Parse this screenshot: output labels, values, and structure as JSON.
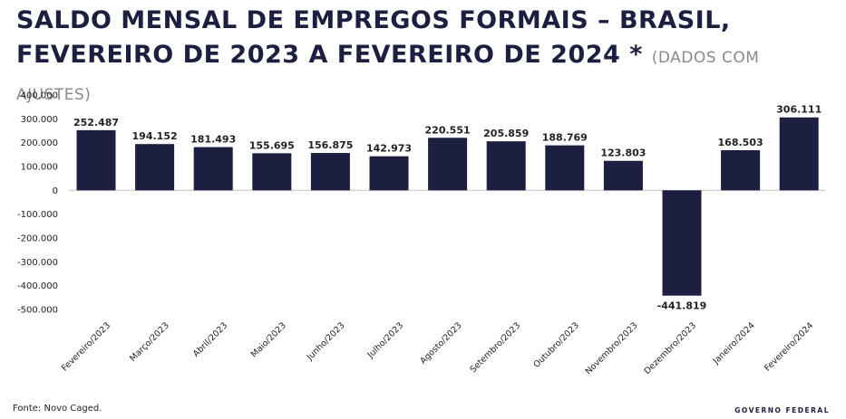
{
  "title": {
    "main": "SALDO MENSAL DE EMPREGOS FORMAIS – BRASIL, FEVEREIRO DE 2023 A FEVEREIRO DE 2024 *",
    "note": "(DADOS COM AJUSTES)"
  },
  "footer": {
    "source": "Fonte: Novo Caged.",
    "brand": "GOVERNO FEDERAL"
  },
  "colors": {
    "bar": "#1c1f3f",
    "title": "#1c1f3f",
    "axis_text": "#222222"
  },
  "chart_data": {
    "type": "bar",
    "title": "SALDO MENSAL DE EMPREGOS FORMAIS – BRASIL, FEVEREIRO DE 2023 A FEVEREIRO DE 2024 *",
    "xlabel": "",
    "ylabel": "",
    "ylim": [
      -500000,
      400000
    ],
    "yticks": [
      400000,
      300000,
      200000,
      100000,
      0,
      -100000,
      -200000,
      -300000,
      -400000,
      -500000
    ],
    "ytick_labels": [
      "400.000",
      "300.000",
      "200.000",
      "100.000",
      "0",
      "-100.000",
      "-200.000",
      "-300.000",
      "-400.000",
      "-500.000"
    ],
    "grid": false,
    "categories": [
      "Fevereiro/2023",
      "Março/2023",
      "Abril/2023",
      "Maio/2023",
      "Junho/2023",
      "Julho/2023",
      "Agosto/2023",
      "Setembro/2023",
      "Outubro/2023",
      "Novembro/2023",
      "Dezembro/2023",
      "Janeiro/2024",
      "Fevereiro/2024"
    ],
    "values": [
      252487,
      194152,
      181493,
      155695,
      156875,
      142973,
      220551,
      205859,
      188769,
      123803,
      -441819,
      168503,
      306111
    ],
    "value_labels": [
      "252.487",
      "194.152",
      "181.493",
      "155.695",
      "156.875",
      "142.973",
      "220.551",
      "205.859",
      "188.769",
      "123.803",
      "-441.819",
      "168.503",
      "306.111"
    ]
  }
}
